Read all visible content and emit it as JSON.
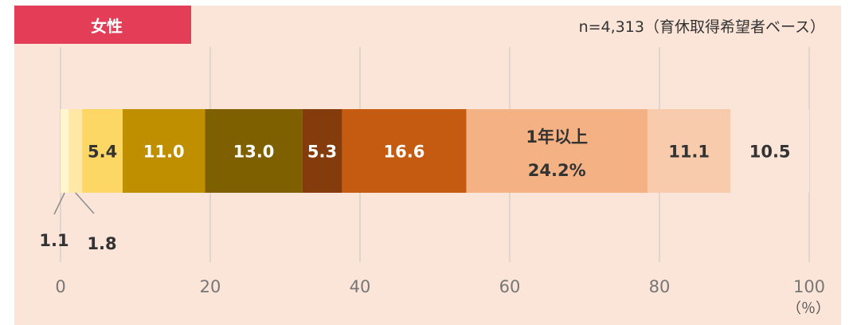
{
  "header": {
    "tag": "女性",
    "note": "n=4,313（育休取得希望者ベース）"
  },
  "unit_label": "（％）",
  "colors": {
    "tag_bg": "#e43d57",
    "background": "#fbe4d8",
    "grid": "#d9d0c8"
  },
  "chart_data": {
    "type": "bar",
    "orientation": "horizontal-stacked",
    "xlim": [
      0,
      100
    ],
    "xticks": [
      "0",
      "20",
      "40",
      "60",
      "80",
      "100"
    ],
    "series": [
      {
        "value": 1.1,
        "label": "1.1",
        "color": "#fff6cf",
        "text_color": "#333333",
        "outside": true
      },
      {
        "value": 1.8,
        "label": "1.8",
        "color": "#ffe7a6",
        "text_color": "#333333",
        "outside": true
      },
      {
        "value": 5.4,
        "label": "5.4",
        "color": "#fdd766",
        "text_color": "#333333"
      },
      {
        "value": 11.0,
        "label": "11.0",
        "color": "#bf8f00",
        "text_color": "#ffffff"
      },
      {
        "value": 13.0,
        "label": "13.0",
        "color": "#7f6000",
        "text_color": "#ffffff"
      },
      {
        "value": 5.3,
        "label": "5.3",
        "color": "#843c0c",
        "text_color": "#ffffff"
      },
      {
        "value": 16.6,
        "label": "16.6",
        "color": "#c55a11",
        "text_color": "#ffffff"
      },
      {
        "value": 24.2,
        "label": "24.2%",
        "color": "#f4b183",
        "text_color": "#333333",
        "extra": "1年以上"
      },
      {
        "value": 11.1,
        "label": "11.1",
        "color": "#f8cbad",
        "text_color": "#333333"
      },
      {
        "value": 10.5,
        "label": "10.5",
        "color": "#fbe4d8",
        "text_color": "#333333"
      }
    ]
  }
}
